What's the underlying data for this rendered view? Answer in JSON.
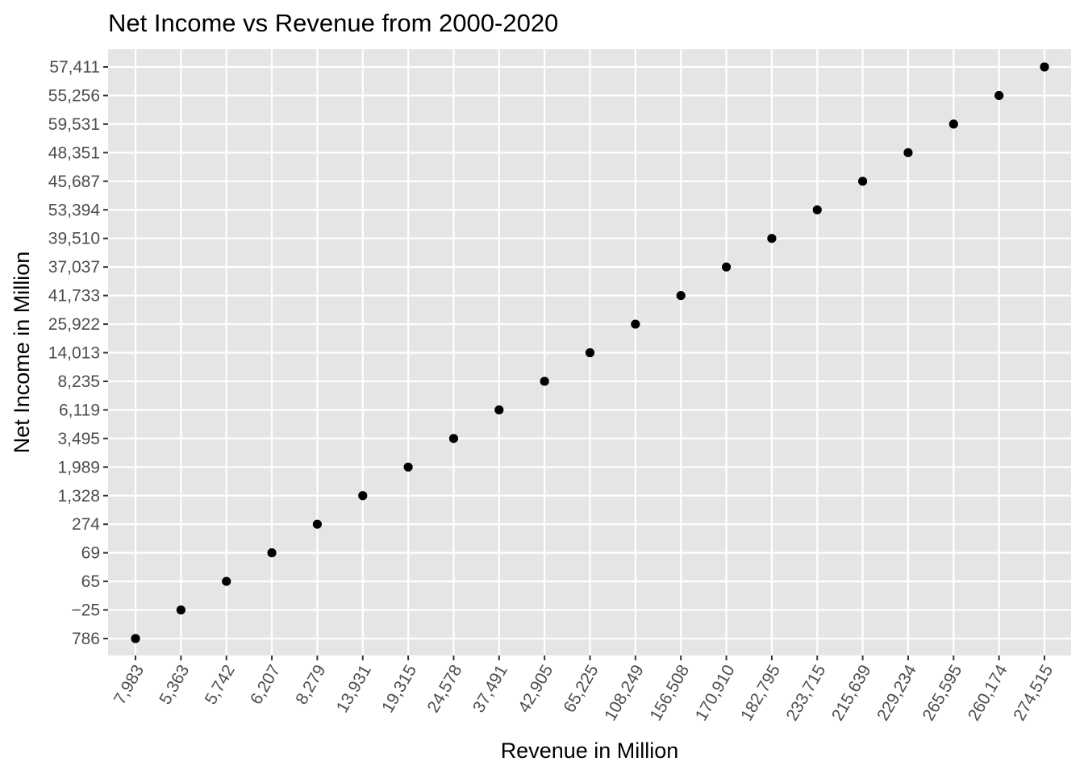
{
  "chart_data": {
    "type": "scatter",
    "title": "Net Income vs Revenue from 2000-2020",
    "xlabel": "Revenue in Million",
    "ylabel": "Net Income in Million",
    "x_scale": "categorical",
    "y_scale": "categorical",
    "x_categories": [
      "7,983",
      "5,363",
      "5,742",
      "6,207",
      "8,279",
      "13,931",
      "19,315",
      "24,578",
      "37,491",
      "42,905",
      "65,225",
      "108,249",
      "156,508",
      "170,910",
      "182,795",
      "233,715",
      "215,639",
      "229,234",
      "265,595",
      "260,174",
      "274,515"
    ],
    "y_categories": [
      "786",
      "−25",
      "65",
      "69",
      "274",
      "1,328",
      "1,989",
      "3,495",
      "6,119",
      "8,235",
      "14,013",
      "25,922",
      "41,733",
      "37,037",
      "39,510",
      "53,394",
      "45,687",
      "48,351",
      "59,531",
      "55,256",
      "57,411"
    ],
    "points": [
      {
        "x": "7,983",
        "y": "786"
      },
      {
        "x": "5,363",
        "y": "−25"
      },
      {
        "x": "5,742",
        "y": "65"
      },
      {
        "x": "6,207",
        "y": "69"
      },
      {
        "x": "8,279",
        "y": "274"
      },
      {
        "x": "13,931",
        "y": "1,328"
      },
      {
        "x": "19,315",
        "y": "1,989"
      },
      {
        "x": "24,578",
        "y": "3,495"
      },
      {
        "x": "37,491",
        "y": "6,119"
      },
      {
        "x": "42,905",
        "y": "8,235"
      },
      {
        "x": "65,225",
        "y": "14,013"
      },
      {
        "x": "108,249",
        "y": "25,922"
      },
      {
        "x": "156,508",
        "y": "41,733"
      },
      {
        "x": "170,910",
        "y": "37,037"
      },
      {
        "x": "182,795",
        "y": "39,510"
      },
      {
        "x": "233,715",
        "y": "53,394"
      },
      {
        "x": "215,639",
        "y": "45,687"
      },
      {
        "x": "229,234",
        "y": "48,351"
      },
      {
        "x": "265,595",
        "y": "59,531"
      },
      {
        "x": "260,174",
        "y": "55,256"
      },
      {
        "x": "274,515",
        "y": "57,411"
      }
    ],
    "grid": true,
    "legend": "none",
    "colors": {
      "panel_background": "#e5e5e5",
      "grid": "#ffffff",
      "points": "#000000",
      "tick_text": "#4d4d4d"
    }
  }
}
